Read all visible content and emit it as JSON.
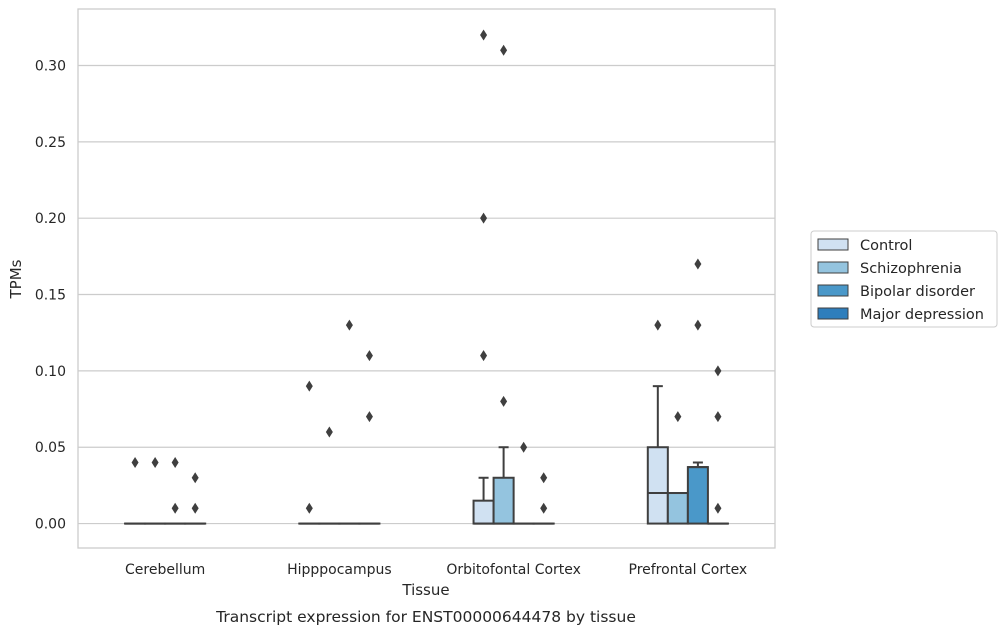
{
  "chart_data": {
    "type": "box",
    "title": "",
    "caption": "Transcript expression for ENST00000644478 by tissue",
    "xlabel": "Tissue",
    "ylabel": "TPMs",
    "ylim": [
      -0.016,
      0.337
    ],
    "yticks": [
      "0.00",
      "0.05",
      "0.10",
      "0.15",
      "0.20",
      "0.25",
      "0.30"
    ],
    "grid": true,
    "legend_position": "right",
    "categories": [
      "Cerebellum",
      "Hipppocampus",
      "Orbitofontal Cortex",
      "Prefrontal Cortex"
    ],
    "series": [
      {
        "name": "Control",
        "color": "#d0e1f2",
        "boxes": [
          {
            "q1": 0,
            "median": 0,
            "q3": 0,
            "whisker_low": 0,
            "whisker_high": 0,
            "outliers": [
              0.04
            ]
          },
          {
            "q1": 0,
            "median": 0,
            "q3": 0,
            "whisker_low": 0,
            "whisker_high": 0,
            "outliers": [
              0.09,
              0.01
            ]
          },
          {
            "q1": 0,
            "median": 0,
            "q3": 0.015,
            "whisker_low": 0,
            "whisker_high": 0.03,
            "outliers": [
              0.32,
              0.2,
              0.11
            ]
          },
          {
            "q1": 0,
            "median": 0.02,
            "q3": 0.05,
            "whisker_low": 0,
            "whisker_high": 0.09,
            "outliers": [
              0.13
            ]
          }
        ]
      },
      {
        "name": "Schizophrenia",
        "color": "#94c4df",
        "boxes": [
          {
            "q1": 0,
            "median": 0,
            "q3": 0,
            "whisker_low": 0,
            "whisker_high": 0,
            "outliers": [
              0.04
            ]
          },
          {
            "q1": 0,
            "median": 0,
            "q3": 0,
            "whisker_low": 0,
            "whisker_high": 0,
            "outliers": [
              0.06
            ]
          },
          {
            "q1": 0,
            "median": 0,
            "q3": 0.03,
            "whisker_low": 0,
            "whisker_high": 0.05,
            "outliers": [
              0.31,
              0.08
            ]
          },
          {
            "q1": 0,
            "median": 0.02,
            "q3": 0.02,
            "whisker_low": 0,
            "whisker_high": 0.02,
            "outliers": [
              0.07
            ]
          }
        ]
      },
      {
        "name": "Bipolar disorder",
        "color": "#4a98c9",
        "boxes": [
          {
            "q1": 0,
            "median": 0,
            "q3": 0,
            "whisker_low": 0,
            "whisker_high": 0,
            "outliers": [
              0.04,
              0.01
            ]
          },
          {
            "q1": 0,
            "median": 0,
            "q3": 0,
            "whisker_low": 0,
            "whisker_high": 0,
            "outliers": [
              0.13
            ]
          },
          {
            "q1": 0,
            "median": 0,
            "q3": 0,
            "whisker_low": 0,
            "whisker_high": 0,
            "outliers": [
              0.05
            ]
          },
          {
            "q1": 0,
            "median": 0.037,
            "q3": 0.037,
            "whisker_low": 0,
            "whisker_high": 0.04,
            "outliers": [
              0.17,
              0.13
            ]
          }
        ]
      },
      {
        "name": "Major depression",
        "color": "#2e7ebc",
        "boxes": [
          {
            "q1": 0,
            "median": 0,
            "q3": 0,
            "whisker_low": 0,
            "whisker_high": 0,
            "outliers": [
              0.03,
              0.01
            ]
          },
          {
            "q1": 0,
            "median": 0,
            "q3": 0,
            "whisker_low": 0,
            "whisker_high": 0,
            "outliers": [
              0.11,
              0.07
            ]
          },
          {
            "q1": 0,
            "median": 0,
            "q3": 0,
            "whisker_low": 0,
            "whisker_high": 0,
            "outliers": [
              0.03,
              0.01
            ]
          },
          {
            "q1": 0,
            "median": 0,
            "q3": 0,
            "whisker_low": 0,
            "whisker_high": 0,
            "outliers": [
              0.1,
              0.07,
              0.01
            ]
          }
        ]
      }
    ]
  }
}
